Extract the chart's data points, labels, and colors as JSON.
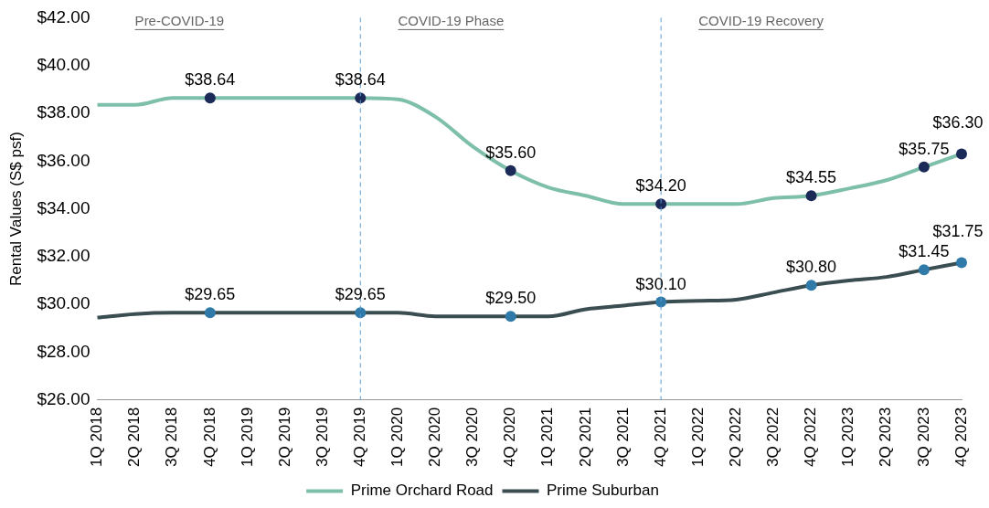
{
  "chart_data": {
    "type": "line",
    "ylabel": "Rental Values (S$ psf)",
    "categories": [
      "1Q 2018",
      "2Q 2018",
      "3Q 2018",
      "4Q 2018",
      "1Q 2019",
      "2Q 2019",
      "3Q 2019",
      "4Q 2019",
      "1Q 2020",
      "2Q 2020",
      "3Q 2020",
      "4Q 2020",
      "1Q 2021",
      "2Q 2021",
      "3Q 2021",
      "4Q 2021",
      "1Q 2022",
      "2Q 2022",
      "3Q 2022",
      "4Q 2022",
      "1Q 2023",
      "2Q 2023",
      "3Q 2023",
      "4Q 2023"
    ],
    "series": [
      {
        "name": "Prime Orchard Road",
        "color": "#7dbfaa",
        "values": [
          38.35,
          38.35,
          38.64,
          38.64,
          38.64,
          38.64,
          38.64,
          38.64,
          38.58,
          37.85,
          36.6,
          35.6,
          34.9,
          34.55,
          34.2,
          34.2,
          34.2,
          34.2,
          34.45,
          34.55,
          34.85,
          35.2,
          35.75,
          36.3
        ],
        "value_labels": [
          null,
          null,
          null,
          "$38.64",
          null,
          null,
          null,
          "$38.64",
          null,
          null,
          null,
          "$35.60",
          null,
          null,
          null,
          "$34.20",
          null,
          null,
          null,
          "$34.55",
          null,
          null,
          "$35.75",
          "$36.30"
        ]
      },
      {
        "name": "Prime Suburban",
        "color": "#3a4e52",
        "values": [
          29.45,
          29.6,
          29.65,
          29.65,
          29.65,
          29.65,
          29.65,
          29.65,
          29.65,
          29.5,
          29.5,
          29.5,
          29.5,
          29.8,
          29.95,
          30.1,
          30.15,
          30.2,
          30.5,
          30.8,
          31.0,
          31.15,
          31.45,
          31.75
        ],
        "value_labels": [
          null,
          null,
          null,
          "$29.65",
          null,
          null,
          null,
          "$29.65",
          null,
          null,
          null,
          "$29.50",
          null,
          null,
          null,
          "$30.10",
          null,
          null,
          null,
          "$30.80",
          null,
          null,
          "$31.45",
          "$31.75"
        ]
      }
    ],
    "ylim": [
      26,
      42
    ],
    "yticks": [
      {
        "value": 26,
        "label": "$26.00"
      },
      {
        "value": 28,
        "label": "$28.00"
      },
      {
        "value": 30,
        "label": "$30.00"
      },
      {
        "value": 32,
        "label": "$32.00"
      },
      {
        "value": 34,
        "label": "$34.00"
      },
      {
        "value": 36,
        "label": "$36.00"
      },
      {
        "value": 38,
        "label": "$38.00"
      },
      {
        "value": 40,
        "label": "$40.00"
      },
      {
        "value": 42,
        "label": "$42.00"
      }
    ],
    "ref_lines": [
      {
        "axis": "x",
        "value": "4Q 2019",
        "color": "#5b9bd5",
        "line_style": "dashed"
      },
      {
        "axis": "x",
        "value": "4Q 2021",
        "color": "#5b9bd5",
        "line_style": "dashed"
      }
    ],
    "annotations": [
      "Pre-COVID-19",
      "COVID-19 Phase",
      "COVID-19 Recovery"
    ],
    "grid": false,
    "legend": "bottom",
    "line_style": "solid"
  }
}
